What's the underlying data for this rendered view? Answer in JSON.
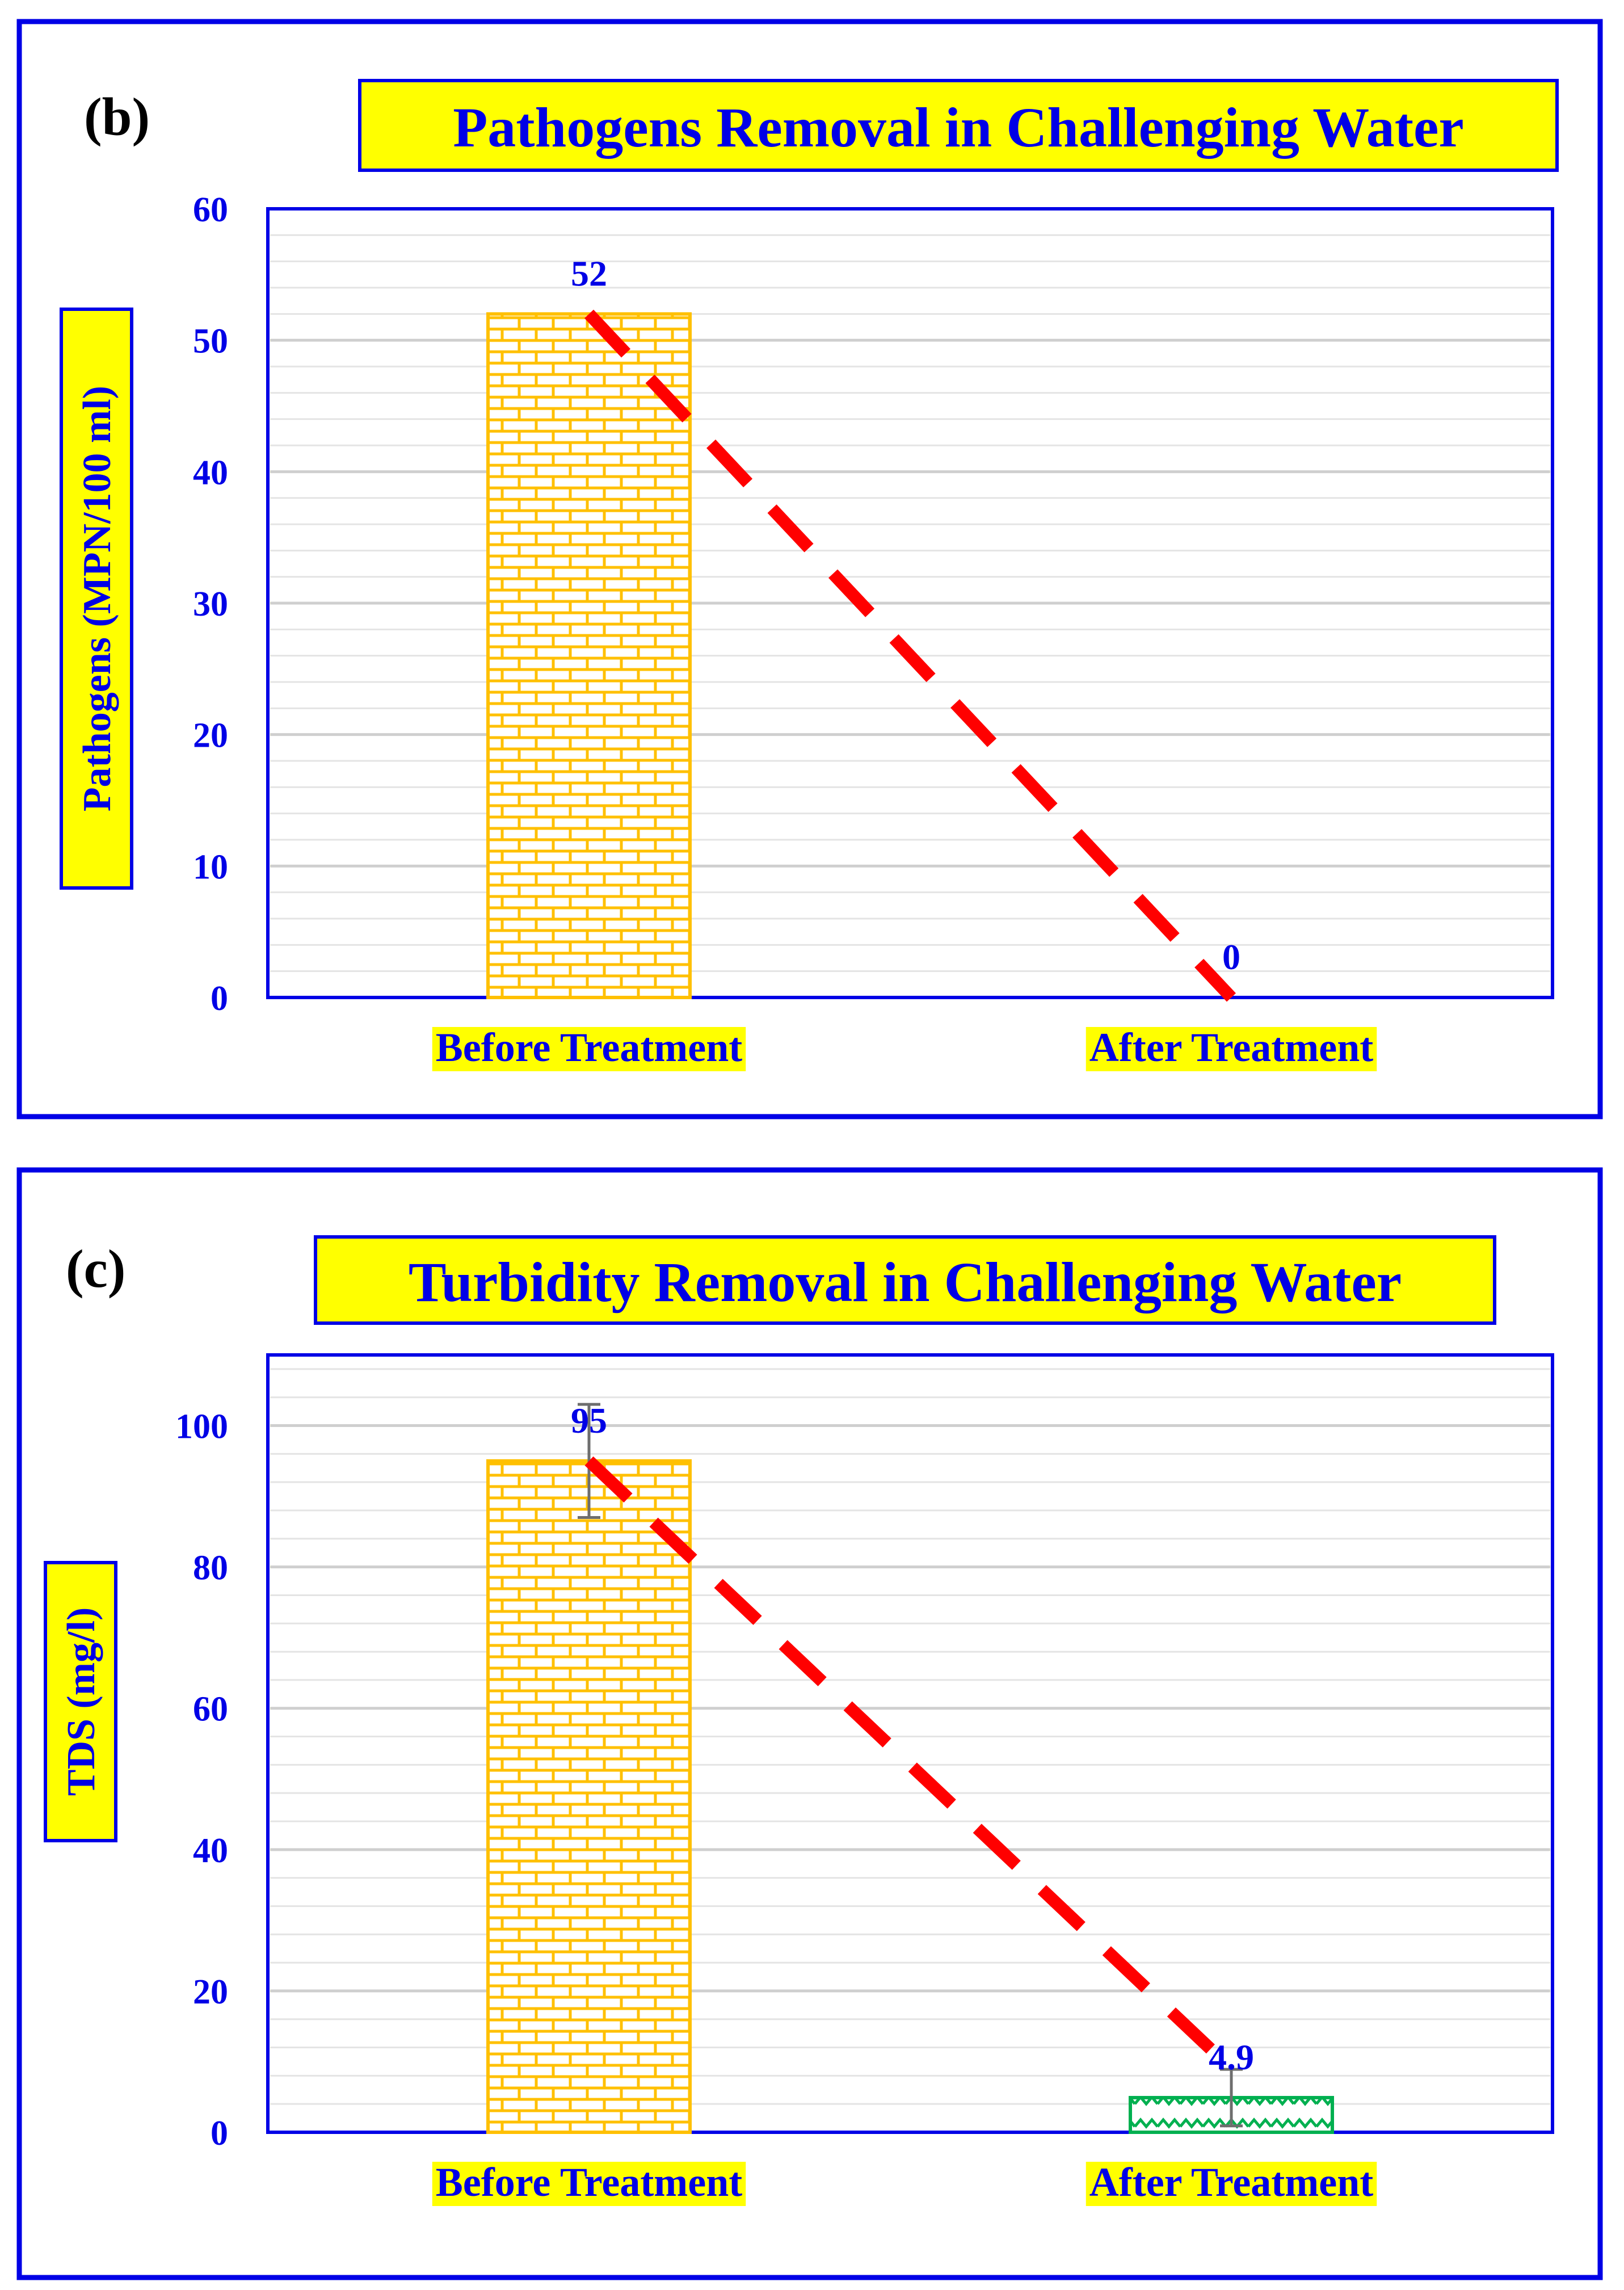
{
  "colors": {
    "frame": "#0000e6",
    "label_background": "#ffff00",
    "bar_before": "#ffc000",
    "bar_after": "#00b050",
    "trend_line": "#ff0000",
    "error_bar": "#6e6e6e"
  },
  "chart_data": [
    {
      "panel_label": "(b)",
      "type": "bar",
      "title": "Pathogens Removal in Challenging Water",
      "categories": [
        "Before Treatment",
        "After Treatment"
      ],
      "values": [
        52,
        0
      ],
      "data_labels": [
        "52",
        "0"
      ],
      "ylabel": "Pathogens (MPN/100 ml)",
      "xlabel": "",
      "ylim": [
        0,
        60
      ],
      "major_step": 10,
      "minor_step": 2,
      "yticks": [
        "0",
        "10",
        "20",
        "30",
        "40",
        "50",
        "60"
      ],
      "error_bars": [
        0,
        0
      ],
      "bar_patterns": [
        "brick",
        "zigzag"
      ],
      "trend_line": "dashed red line connecting bar tops",
      "grid": true,
      "legend": "none"
    },
    {
      "panel_label": "(c)",
      "type": "bar",
      "title": "Turbidity Removal in Challenging Water",
      "categories": [
        "Before Treatment",
        "After Treatment"
      ],
      "values": [
        95,
        4.9
      ],
      "data_labels": [
        "95",
        "4.9"
      ],
      "ylabel": "TDS (mg/l)",
      "xlabel": "",
      "ylim": [
        0,
        110
      ],
      "major_step": 20,
      "minor_step": 4,
      "yticks": [
        "0",
        "20",
        "40",
        "60",
        "80",
        "100"
      ],
      "error_bars": [
        8,
        4
      ],
      "bar_patterns": [
        "brick",
        "zigzag"
      ],
      "trend_line": "dashed red line from before top to after value",
      "trend_end_value": 9,
      "grid": true,
      "legend": "none"
    }
  ]
}
